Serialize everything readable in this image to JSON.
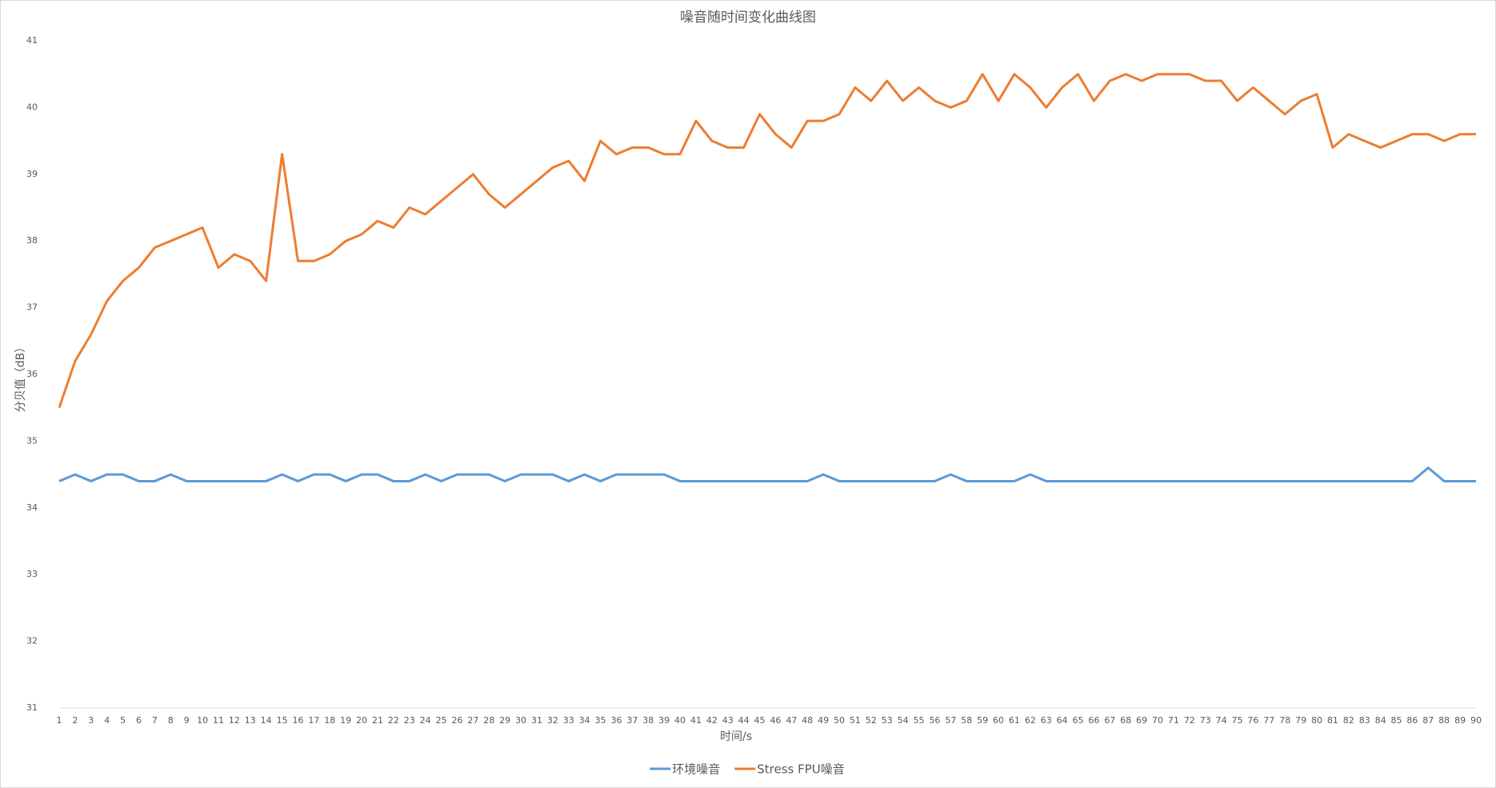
{
  "chart_data": {
    "type": "line",
    "title": "噪音随时间变化曲线图",
    "x_label": "时间/s",
    "y_label": "分贝值（dB）",
    "x": [
      1,
      2,
      3,
      4,
      5,
      6,
      7,
      8,
      9,
      10,
      11,
      12,
      13,
      14,
      15,
      16,
      17,
      18,
      19,
      20,
      21,
      22,
      23,
      24,
      25,
      26,
      27,
      28,
      29,
      30,
      31,
      32,
      33,
      34,
      35,
      36,
      37,
      38,
      39,
      40,
      41,
      42,
      43,
      44,
      45,
      46,
      47,
      48,
      49,
      50,
      51,
      52,
      53,
      54,
      55,
      56,
      57,
      58,
      59,
      60,
      61,
      62,
      63,
      64,
      65,
      66,
      67,
      68,
      69,
      70,
      71,
      72,
      73,
      74,
      75,
      76,
      77,
      78,
      79,
      80,
      81,
      82,
      83,
      84,
      85,
      86,
      87,
      88,
      89,
      90
    ],
    "xlim": [
      1,
      90
    ],
    "ylim": [
      31,
      41
    ],
    "yticks": [
      31,
      32,
      33,
      34,
      35,
      36,
      37,
      38,
      39,
      40,
      41
    ],
    "grid": false,
    "legend": "bottom",
    "series": [
      {
        "name": "环境噪音",
        "color": "#5b9bd5",
        "values": [
          34.4,
          34.5,
          34.4,
          34.5,
          34.5,
          34.4,
          34.4,
          34.5,
          34.4,
          34.4,
          34.4,
          34.4,
          34.4,
          34.4,
          34.5,
          34.4,
          34.5,
          34.5,
          34.4,
          34.5,
          34.5,
          34.4,
          34.4,
          34.5,
          34.4,
          34.5,
          34.5,
          34.5,
          34.4,
          34.5,
          34.5,
          34.5,
          34.4,
          34.5,
          34.4,
          34.5,
          34.5,
          34.5,
          34.5,
          34.4,
          34.4,
          34.4,
          34.4,
          34.4,
          34.4,
          34.4,
          34.4,
          34.4,
          34.5,
          34.4,
          34.4,
          34.4,
          34.4,
          34.4,
          34.4,
          34.4,
          34.5,
          34.4,
          34.4,
          34.4,
          34.4,
          34.5,
          34.4,
          34.4,
          34.4,
          34.4,
          34.4,
          34.4,
          34.4,
          34.4,
          34.4,
          34.4,
          34.4,
          34.4,
          34.4,
          34.4,
          34.4,
          34.4,
          34.4,
          34.4,
          34.4,
          34.4,
          34.4,
          34.4,
          34.4,
          34.4,
          34.6,
          34.4,
          34.4,
          34.4
        ]
      },
      {
        "name": "Stress FPU噪音",
        "color": "#ed7d31",
        "values": [
          35.5,
          36.2,
          36.6,
          37.1,
          37.4,
          37.6,
          37.9,
          38.0,
          38.1,
          38.2,
          37.6,
          37.8,
          37.7,
          37.4,
          39.3,
          37.7,
          37.7,
          37.8,
          38.0,
          38.1,
          38.3,
          38.2,
          38.5,
          38.4,
          38.6,
          38.8,
          39.0,
          38.7,
          38.5,
          38.7,
          38.9,
          39.1,
          39.2,
          38.9,
          39.5,
          39.3,
          39.4,
          39.4,
          39.3,
          39.3,
          39.8,
          39.5,
          39.4,
          39.4,
          39.9,
          39.6,
          39.4,
          39.8,
          39.8,
          39.9,
          40.3,
          40.1,
          40.4,
          40.1,
          40.3,
          40.1,
          40.0,
          40.1,
          40.5,
          40.1,
          40.5,
          40.3,
          40.0,
          40.3,
          40.5,
          40.1,
          40.4,
          40.5,
          40.4,
          40.5,
          40.5,
          40.5,
          40.4,
          40.4,
          40.1,
          40.3,
          40.1,
          39.9,
          40.1,
          40.2,
          39.4,
          39.6,
          39.5,
          39.4,
          39.5,
          39.6,
          39.6,
          39.5,
          39.6,
          39.6
        ]
      }
    ]
  }
}
